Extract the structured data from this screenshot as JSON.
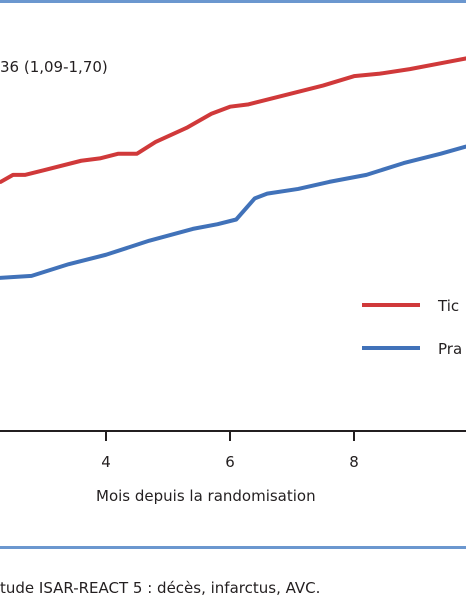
{
  "hazard_ratio_text": "36 (1,09-1,70)",
  "caption": "tude ISAR-REACT 5 : décès, infarctus, AVC.",
  "colors": {
    "rule": "#6b97cf",
    "axis": "#231f20"
  },
  "chart_data": {
    "type": "line",
    "xlabel": "Mois depuis la randomisation",
    "xticks": [
      4,
      6,
      8
    ],
    "series": [
      {
        "name": "Tic",
        "color": "#d0393a",
        "points": [
          [
            -1.7,
            9.5
          ],
          [
            -1.0,
            9.5
          ],
          [
            -0.6,
            9.5
          ],
          [
            -0.4,
            9.7
          ],
          [
            -0.2,
            10.1
          ],
          [
            0.6,
            10.1
          ],
          [
            1.2,
            10.1
          ],
          [
            1.7,
            10.4
          ],
          [
            2.0,
            10.6
          ],
          [
            2.3,
            10.6
          ],
          [
            2.5,
            10.9
          ],
          [
            2.7,
            10.9
          ],
          [
            3.0,
            11.1
          ],
          [
            3.6,
            11.5
          ],
          [
            3.9,
            11.6
          ],
          [
            4.2,
            11.8
          ],
          [
            4.5,
            11.8
          ],
          [
            4.8,
            12.3
          ],
          [
            5.3,
            12.9
          ],
          [
            5.7,
            13.5
          ],
          [
            6.0,
            13.8
          ],
          [
            6.3,
            13.9
          ],
          [
            6.9,
            14.3
          ],
          [
            7.5,
            14.7
          ],
          [
            8.0,
            15.1
          ],
          [
            8.4,
            15.2
          ],
          [
            8.9,
            15.4
          ],
          [
            9.5,
            15.7
          ],
          [
            9.9,
            15.9
          ],
          [
            10.3,
            15.9
          ]
        ]
      },
      {
        "name": "Pra",
        "color": "#4172b9",
        "points": [
          [
            -1.7,
            4.1
          ],
          [
            -1.5,
            4.6
          ],
          [
            -1.3,
            5.0
          ],
          [
            -0.7,
            5.1
          ],
          [
            -0.4,
            5.3
          ],
          [
            -0.2,
            5.9
          ],
          [
            0.5,
            6.0
          ],
          [
            0.9,
            6.1
          ],
          [
            1.1,
            6.1
          ],
          [
            1.6,
            6.2
          ],
          [
            2.2,
            6.5
          ],
          [
            2.8,
            6.6
          ],
          [
            3.4,
            7.1
          ],
          [
            4.0,
            7.5
          ],
          [
            4.7,
            8.1
          ],
          [
            5.4,
            8.6
          ],
          [
            5.8,
            8.8
          ],
          [
            6.1,
            9.0
          ],
          [
            6.4,
            9.9
          ],
          [
            6.6,
            10.1
          ],
          [
            7.1,
            10.3
          ],
          [
            7.6,
            10.6
          ],
          [
            8.2,
            10.9
          ],
          [
            8.8,
            11.4
          ],
          [
            9.4,
            11.8
          ],
          [
            9.8,
            12.1
          ],
          [
            10.3,
            12.1
          ]
        ]
      }
    ]
  }
}
